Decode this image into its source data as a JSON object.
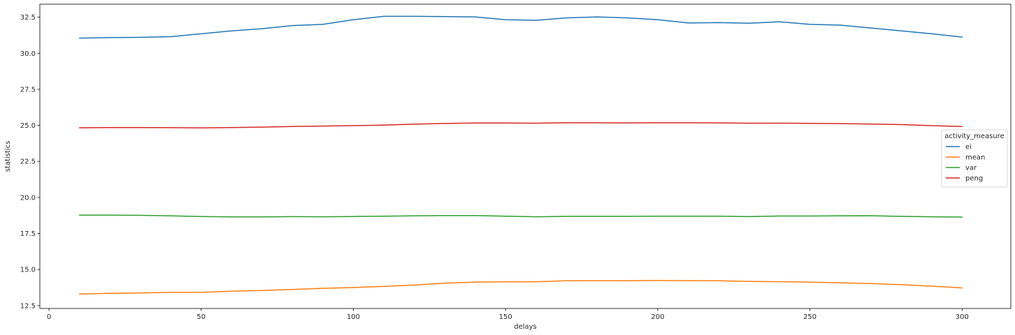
{
  "chart_data": {
    "type": "line",
    "title": "",
    "xlabel": "delays",
    "ylabel": "statistics",
    "xlim": [
      -3,
      316
    ],
    "ylim": [
      12.3,
      33.4
    ],
    "xticks": [
      0,
      50,
      100,
      150,
      200,
      250,
      300
    ],
    "xtick_labels": [
      "0",
      "50",
      "100",
      "150",
      "200",
      "250",
      "300"
    ],
    "yticks": [
      12.5,
      15.0,
      17.5,
      20.0,
      22.5,
      25.0,
      27.5,
      30.0,
      32.5
    ],
    "ytick_labels": [
      "12.5",
      "15.0",
      "17.5",
      "20.0",
      "22.5",
      "25.0",
      "27.5",
      "30.0",
      "32.5"
    ],
    "grid": false,
    "legend_title": "activity_measure",
    "legend_position": "center-right",
    "x": [
      10,
      20,
      30,
      40,
      50,
      60,
      70,
      80,
      90,
      100,
      110,
      120,
      130,
      140,
      150,
      160,
      170,
      180,
      190,
      200,
      210,
      220,
      230,
      240,
      250,
      260,
      270,
      280,
      290,
      300
    ],
    "series": [
      {
        "name": "ei",
        "color": "#1f77b4",
        "values": [
          31.05,
          31.08,
          31.1,
          31.15,
          31.35,
          31.55,
          31.7,
          31.92,
          32.0,
          32.32,
          32.56,
          32.56,
          32.54,
          32.52,
          32.32,
          32.28,
          32.45,
          32.52,
          32.45,
          32.32,
          32.1,
          32.12,
          32.08,
          32.18,
          32.0,
          31.95,
          31.75,
          31.55,
          31.35,
          31.12
        ]
      },
      {
        "name": "mean",
        "color": "#ff7f0e",
        "values": [
          13.3,
          13.35,
          13.38,
          13.42,
          13.42,
          13.5,
          13.55,
          13.62,
          13.7,
          13.75,
          13.83,
          13.92,
          14.05,
          14.13,
          14.15,
          14.15,
          14.22,
          14.22,
          14.22,
          14.24,
          14.23,
          14.22,
          14.18,
          14.16,
          14.13,
          14.08,
          14.03,
          13.95,
          13.85,
          13.73
        ]
      },
      {
        "name": "var",
        "color": "#2ca02c",
        "values": [
          18.77,
          18.77,
          18.76,
          18.72,
          18.68,
          18.65,
          18.65,
          18.67,
          18.66,
          18.68,
          18.7,
          18.72,
          18.74,
          18.74,
          18.7,
          18.66,
          18.69,
          18.69,
          18.69,
          18.7,
          18.7,
          18.7,
          18.67,
          18.71,
          18.71,
          18.72,
          18.73,
          18.69,
          18.66,
          18.64
        ]
      },
      {
        "name": "peng",
        "color": "#d62728",
        "values": [
          24.83,
          24.85,
          24.85,
          24.84,
          24.82,
          24.85,
          24.88,
          24.92,
          24.95,
          24.98,
          25.02,
          25.08,
          25.13,
          25.16,
          25.16,
          25.15,
          25.18,
          25.18,
          25.17,
          25.18,
          25.18,
          25.17,
          25.15,
          25.15,
          25.14,
          25.12,
          25.09,
          25.05,
          24.98,
          24.92
        ]
      }
    ]
  }
}
